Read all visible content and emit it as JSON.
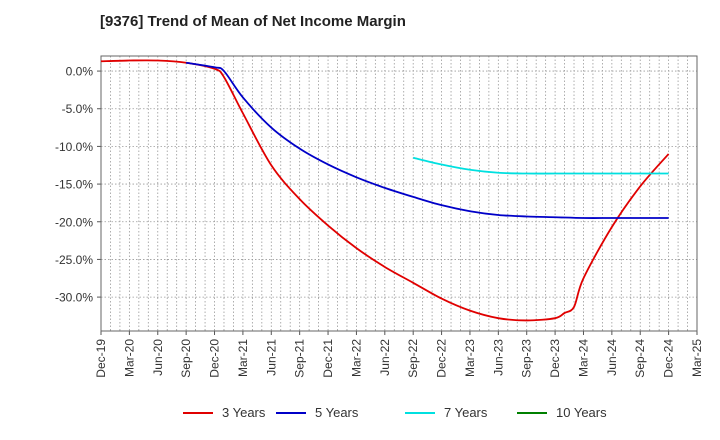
{
  "chart_data": {
    "type": "line",
    "title": "[9376]  Trend of Mean of Net Income Margin",
    "xlabel": "",
    "ylabel": "",
    "x_tick_labels": [
      "Dec-19",
      "Mar-20",
      "Jun-20",
      "Sep-20",
      "Dec-20",
      "Mar-21",
      "Jun-21",
      "Sep-21",
      "Dec-21",
      "Mar-22",
      "Jun-22",
      "Sep-22",
      "Dec-22",
      "Mar-23",
      "Jun-23",
      "Sep-23",
      "Dec-23",
      "Mar-24",
      "Jun-24",
      "Sep-24",
      "Dec-24",
      "Mar-25"
    ],
    "y_ticks": [
      0,
      -5,
      -10,
      -15,
      -20,
      -25,
      -30
    ],
    "y_tick_labels": [
      "0.0%",
      "-5.0%",
      "-10.0%",
      "-15.0%",
      "-20.0%",
      "-25.0%",
      "-30.0%"
    ],
    "ylim": [
      -34.5,
      2.0
    ],
    "grid": true,
    "legend_position": "bottom",
    "series": [
      {
        "name": "3 Years",
        "color": "#e00000",
        "points": [
          [
            "Dec-19",
            1.3
          ],
          [
            "Mar-20",
            1.4
          ],
          [
            "Jun-20",
            1.4
          ],
          [
            "Sep-20",
            1.1
          ],
          [
            "Dec-20",
            0.3
          ],
          [
            "Jan-21",
            -0.8
          ],
          [
            "Mar-21",
            -5.6
          ],
          [
            "Jun-21",
            -12.5
          ],
          [
            "Sep-21",
            -17.0
          ],
          [
            "Dec-21",
            -20.5
          ],
          [
            "Mar-22",
            -23.5
          ],
          [
            "Jun-22",
            -26.0
          ],
          [
            "Sep-22",
            -28.1
          ],
          [
            "Dec-22",
            -30.2
          ],
          [
            "Mar-23",
            -31.8
          ],
          [
            "Jun-23",
            -32.8
          ],
          [
            "Sep-23",
            -33.1
          ],
          [
            "Dec-23",
            -32.8
          ],
          [
            "Jan-24",
            -32.1
          ],
          [
            "Feb-24",
            -31.3
          ],
          [
            "Mar-24",
            -27.5
          ],
          [
            "Jun-24",
            -20.7
          ],
          [
            "Sep-24",
            -15.3
          ],
          [
            "Dec-24",
            -11.0
          ]
        ]
      },
      {
        "name": "5 Years",
        "color": "#0000c8",
        "points": [
          [
            "Sep-20",
            1.1
          ],
          [
            "Dec-20",
            0.5
          ],
          [
            "Jan-21",
            0.0
          ],
          [
            "Mar-21",
            -3.5
          ],
          [
            "Jun-21",
            -7.5
          ],
          [
            "Sep-21",
            -10.3
          ],
          [
            "Dec-21",
            -12.4
          ],
          [
            "Mar-22",
            -14.1
          ],
          [
            "Jun-22",
            -15.5
          ],
          [
            "Sep-22",
            -16.7
          ],
          [
            "Dec-22",
            -17.8
          ],
          [
            "Mar-23",
            -18.6
          ],
          [
            "Jun-23",
            -19.1
          ],
          [
            "Sep-23",
            -19.3
          ],
          [
            "Dec-23",
            -19.4
          ],
          [
            "Mar-24",
            -19.5
          ],
          [
            "Jun-24",
            -19.5
          ],
          [
            "Sep-24",
            -19.5
          ],
          [
            "Dec-24",
            -19.5
          ]
        ]
      },
      {
        "name": "7 Years",
        "color": "#00e0e0",
        "points": [
          [
            "Sep-22",
            -11.5
          ],
          [
            "Dec-22",
            -12.4
          ],
          [
            "Mar-23",
            -13.1
          ],
          [
            "Jun-23",
            -13.5
          ],
          [
            "Sep-23",
            -13.6
          ],
          [
            "Dec-23",
            -13.6
          ],
          [
            "Mar-24",
            -13.6
          ],
          [
            "Jun-24",
            -13.6
          ],
          [
            "Sep-24",
            -13.6
          ],
          [
            "Dec-24",
            -13.6
          ]
        ]
      },
      {
        "name": "10 Years",
        "color": "#008000",
        "points": []
      }
    ]
  }
}
